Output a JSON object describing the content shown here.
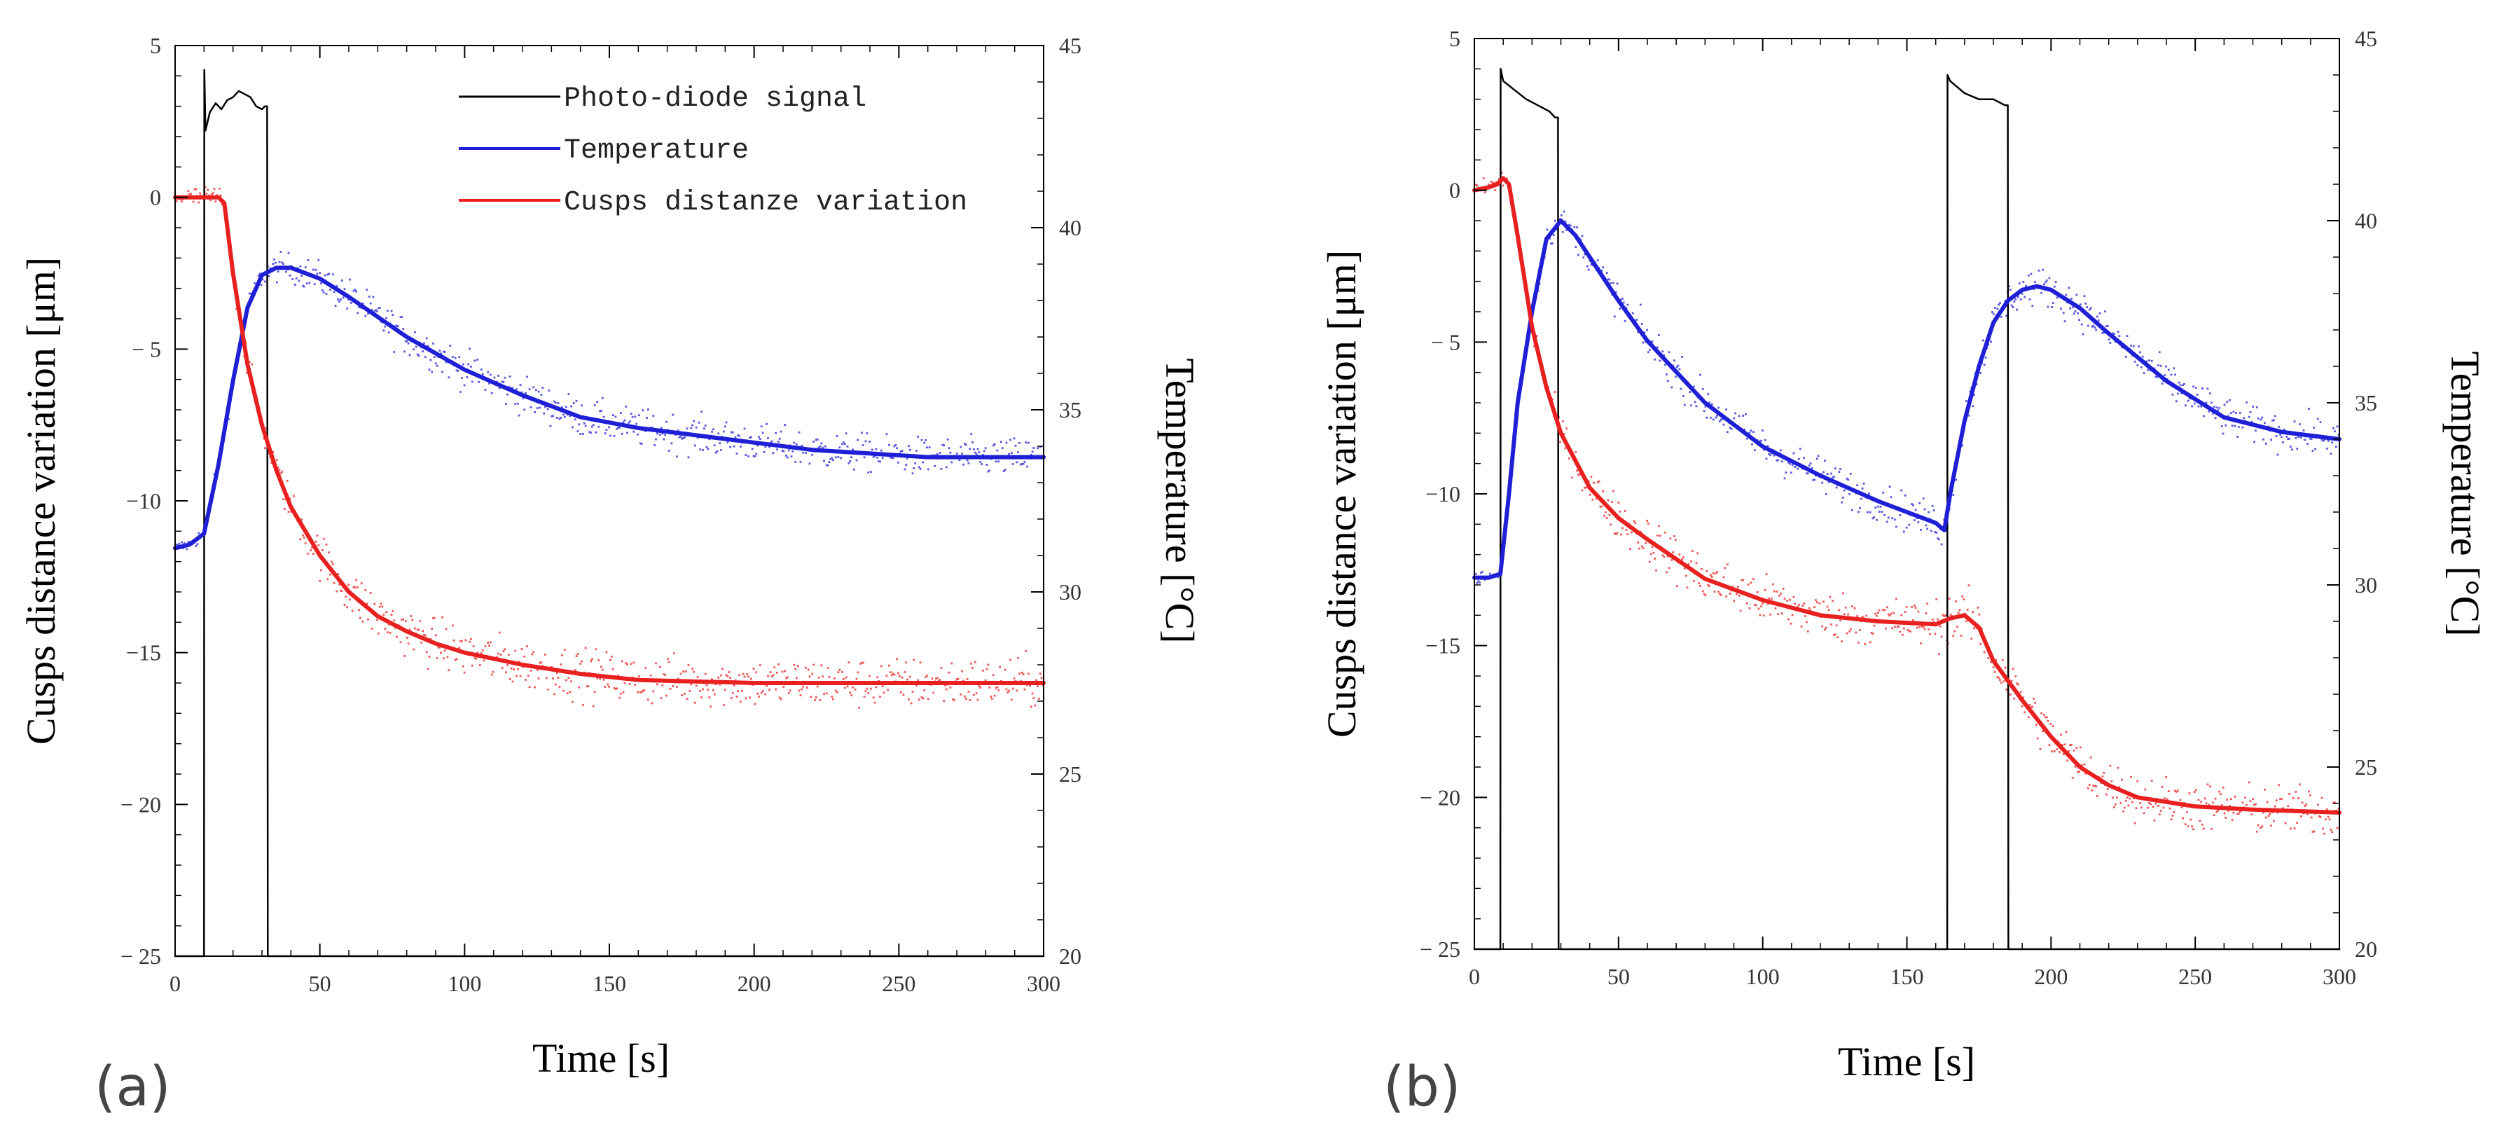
{
  "figure": {
    "panel_labels": [
      "(a)",
      "(b)"
    ]
  },
  "colors": {
    "photodiode": "#000000",
    "temperature": "#1f1fd6",
    "cusps": "#e82020",
    "axis": "#000000"
  },
  "chart_data": [
    {
      "id": "a",
      "type": "line",
      "panel_label": "(a)",
      "xlabel": "Time [s]",
      "ylabel_left": "Cusps distance variation [μm]",
      "ylabel_right": "Temperature [°C]",
      "xlim": [
        0,
        300
      ],
      "ylim_left": [
        -25,
        5
      ],
      "ylim_right": [
        20,
        45
      ],
      "xticks": [
        0,
        50,
        100,
        150,
        200,
        250,
        300
      ],
      "yticks_left": [
        5,
        0,
        -5,
        -10,
        -15,
        -20,
        -25
      ],
      "ytick_labels_left": [
        "5",
        "0",
        "− 5",
        "−10",
        "−15",
        "− 20",
        "− 25"
      ],
      "yticks_right": [
        45,
        40,
        35,
        30,
        25,
        20
      ],
      "legend": {
        "position": "top-right",
        "entries": [
          "Photo-diode signal",
          "Temperature",
          "Cusps distanze variation"
        ]
      },
      "series": [
        {
          "name": "Photo-diode signal",
          "axis": "left",
          "style": "thin",
          "x": [
            0,
            10,
            10.1,
            10.5,
            12,
            14,
            16,
            18,
            20,
            22,
            24,
            26,
            28,
            30,
            31,
            31.8,
            32,
            300
          ],
          "y": [
            -25,
            -25,
            4.2,
            2.2,
            2.8,
            3.1,
            2.9,
            3.2,
            3.3,
            3.5,
            3.4,
            3.3,
            3.0,
            2.9,
            3.0,
            3.0,
            -25,
            -25
          ]
        },
        {
          "name": "Temperature",
          "axis": "right",
          "style": "thick",
          "x": [
            0,
            5,
            10,
            15,
            20,
            25,
            30,
            35,
            40,
            50,
            60,
            80,
            100,
            120,
            140,
            160,
            180,
            200,
            220,
            240,
            260,
            280,
            300
          ],
          "y": [
            31.2,
            31.3,
            31.6,
            33.5,
            35.8,
            37.8,
            38.7,
            38.9,
            38.9,
            38.6,
            38.1,
            37.0,
            36.1,
            35.4,
            34.8,
            34.5,
            34.3,
            34.1,
            33.9,
            33.8,
            33.7,
            33.7,
            33.7
          ]
        },
        {
          "name": "Cusps distanze variation",
          "axis": "left",
          "style": "thick",
          "x": [
            0,
            10,
            15,
            17,
            20,
            25,
            30,
            35,
            40,
            50,
            60,
            70,
            80,
            90,
            100,
            110,
            120,
            140,
            160,
            200,
            250,
            300
          ],
          "y": [
            0,
            0,
            0,
            -0.2,
            -2.5,
            -5.5,
            -7.5,
            -9.0,
            -10.2,
            -11.8,
            -13.0,
            -13.8,
            -14.3,
            -14.7,
            -15.0,
            -15.2,
            -15.4,
            -15.7,
            -15.9,
            -16.0,
            -16.0,
            -16.0
          ]
        }
      ]
    },
    {
      "id": "b",
      "type": "line",
      "panel_label": "(b)",
      "xlabel": "Time [s]",
      "ylabel_left": "Cusps distance variation [μm]",
      "ylabel_right": "Temperature [°C]",
      "xlim": [
        0,
        300
      ],
      "ylim_left": [
        -25,
        5
      ],
      "ylim_right": [
        20,
        45
      ],
      "xticks": [
        0,
        50,
        100,
        150,
        200,
        250,
        300
      ],
      "yticks_left": [
        5,
        0,
        -5,
        -10,
        -15,
        -20,
        -25
      ],
      "ytick_labels_left": [
        "5",
        "0",
        "− 5",
        "−10",
        "−15",
        "− 20",
        "− 25"
      ],
      "yticks_right": [
        45,
        40,
        35,
        30,
        25,
        20
      ],
      "legend": null,
      "series": [
        {
          "name": "Photo-diode signal",
          "axis": "left",
          "style": "thin",
          "x": [
            0,
            9,
            9.1,
            10,
            14,
            18,
            22,
            26,
            28,
            29,
            29.2,
            164,
            164.1,
            165,
            170,
            175,
            180,
            184,
            185,
            185.2,
            300
          ],
          "y": [
            -25,
            -25,
            4.0,
            3.6,
            3.3,
            3.0,
            2.8,
            2.6,
            2.4,
            2.4,
            -25,
            -25,
            3.8,
            3.6,
            3.2,
            3.0,
            3.0,
            2.8,
            2.8,
            -25,
            -25
          ]
        },
        {
          "name": "Temperature",
          "axis": "right",
          "style": "thick",
          "x": [
            0,
            5,
            9,
            12,
            15,
            20,
            25,
            30,
            35,
            40,
            50,
            60,
            80,
            100,
            120,
            140,
            160,
            163,
            165,
            170,
            175,
            180,
            185,
            190,
            195,
            200,
            210,
            220,
            240,
            260,
            280,
            300
          ],
          "y": [
            30.2,
            30.2,
            30.3,
            32.5,
            35.0,
            37.5,
            39.5,
            40.0,
            39.6,
            39.0,
            37.8,
            36.7,
            35.0,
            33.8,
            33.0,
            32.3,
            31.7,
            31.5,
            32.5,
            34.5,
            36.0,
            37.2,
            37.8,
            38.1,
            38.2,
            38.1,
            37.6,
            36.9,
            35.6,
            34.6,
            34.2,
            34.0
          ]
        },
        {
          "name": "Cusps distanze variation",
          "axis": "left",
          "style": "thick",
          "x": [
            0,
            5,
            8,
            10,
            12,
            15,
            20,
            25,
            30,
            40,
            50,
            60,
            80,
            100,
            120,
            140,
            160,
            165,
            170,
            175,
            180,
            190,
            200,
            210,
            220,
            230,
            250,
            270,
            300
          ],
          "y": [
            0,
            0.1,
            0.2,
            0.4,
            0.2,
            -1.5,
            -4.5,
            -6.5,
            -8.0,
            -9.8,
            -10.8,
            -11.5,
            -12.8,
            -13.5,
            -14.0,
            -14.2,
            -14.3,
            -14.1,
            -14.0,
            -14.4,
            -15.5,
            -16.8,
            -18.0,
            -19.0,
            -19.6,
            -20.0,
            -20.3,
            -20.4,
            -20.5
          ]
        }
      ]
    }
  ]
}
